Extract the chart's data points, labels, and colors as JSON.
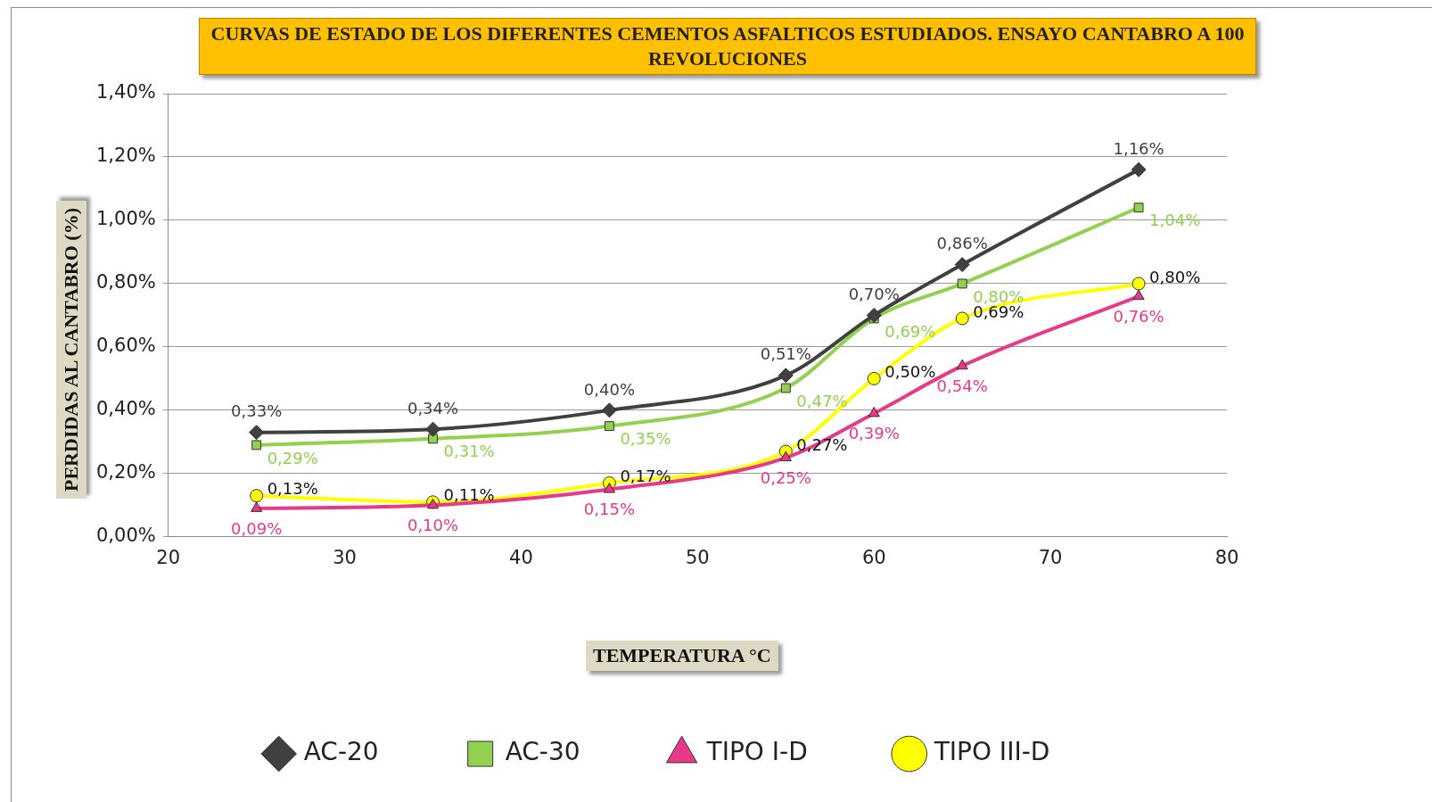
{
  "chart_data": {
    "type": "line",
    "title": "CURVAS DE ESTADO DE LOS DIFERENTES CEMENTOS ASFALTICOS ESTUDIADOS. ENSAYO CANTABRO A 100 REVOLUCIONES",
    "xlabel": "TEMPERATURA °C",
    "ylabel": "PERDIDAS AL CANTABRO (%)",
    "x": [
      25,
      35,
      45,
      55,
      60,
      65,
      75
    ],
    "series": [
      {
        "name": "AC-20",
        "color": "#404040",
        "marker": "diamond",
        "values": [
          0.33,
          0.34,
          0.4,
          0.51,
          0.7,
          0.86,
          1.16
        ],
        "value_labels": [
          "0,33%",
          "0,34%",
          "0,40%",
          "0,51%",
          "0,70%",
          "0,86%",
          "1,16%"
        ]
      },
      {
        "name": "AC-30",
        "color": "#92d050",
        "marker": "square",
        "values": [
          0.29,
          0.31,
          0.35,
          0.47,
          0.69,
          0.8,
          1.04
        ],
        "value_labels": [
          "0,29%",
          "0,31%",
          "0,35%",
          "0,47%",
          "0,69%",
          "0,80%",
          "1,04%"
        ]
      },
      {
        "name": "TIPO I-D",
        "color": "#e8388a",
        "marker": "triangle",
        "values": [
          0.09,
          0.1,
          0.15,
          0.25,
          0.39,
          0.54,
          0.76
        ],
        "value_labels": [
          "0,09%",
          "0,10%",
          "0,15%",
          "0,25%",
          "0,39%",
          "0,54%",
          "0,76%"
        ]
      },
      {
        "name": "TIPO III-D",
        "color": "#ffff00",
        "marker": "circle",
        "values": [
          0.13,
          0.11,
          0.17,
          0.27,
          0.5,
          0.69,
          0.8
        ],
        "value_labels": [
          "0,13%",
          "0,11%",
          "0,17%",
          "0,27%",
          "0,50%",
          "0,69%",
          "0,80%"
        ]
      }
    ],
    "xlim": [
      20,
      80
    ],
    "xticks": [
      20,
      30,
      40,
      50,
      60,
      70,
      80
    ],
    "ylim": [
      0,
      1.4
    ],
    "yticks": [
      {
        "value": 0,
        "label": "0,00%"
      },
      {
        "value": 0.2,
        "label": "0,20%"
      },
      {
        "value": 0.4,
        "label": "0,40%"
      },
      {
        "value": 0.6,
        "label": "0,60%"
      },
      {
        "value": 0.8,
        "label": "0,80%"
      },
      {
        "value": 1.0,
        "label": "1,00%"
      },
      {
        "value": 1.2,
        "label": "1,20%"
      },
      {
        "value": 1.4,
        "label": "1,40%"
      }
    ],
    "grid": "y",
    "legend": "bottom"
  }
}
